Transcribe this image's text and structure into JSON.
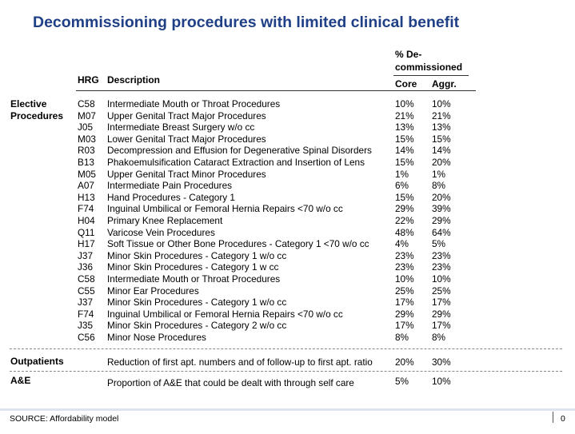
{
  "title": "Decommissioning procedures with limited clinical benefit",
  "headers": {
    "hrg": "HRG",
    "description": "Description",
    "pct_line1": "% De-",
    "pct_line2": "commissioned",
    "core": "Core",
    "aggr": "Aggr."
  },
  "sections": {
    "elective_line1": "Elective",
    "elective_line2": "Procedures",
    "outpatients": "Outpatients",
    "ae": "A&E"
  },
  "elective_rows": [
    {
      "hrg": "C58",
      "description": "Intermediate Mouth or Throat Procedures",
      "core": "10%",
      "aggr": "10%"
    },
    {
      "hrg": "M07",
      "description": "Upper Genital Tract Major Procedures",
      "core": "21%",
      "aggr": "21%"
    },
    {
      "hrg": "J05",
      "description": "Intermediate Breast Surgery w/o cc",
      "core": "13%",
      "aggr": "13%"
    },
    {
      "hrg": "M03",
      "description": "Lower Genital Tract Major Procedures",
      "core": "15%",
      "aggr": "15%"
    },
    {
      "hrg": "R03",
      "description": "Decompression and Effusion for Degenerative Spinal Disorders",
      "core": "14%",
      "aggr": "14%"
    },
    {
      "hrg": "B13",
      "description": "Phakoemulsification Cataract Extraction and Insertion of Lens",
      "core": "15%",
      "aggr": "20%"
    },
    {
      "hrg": "M05",
      "description": "Upper Genital Tract Minor Procedures",
      "core": "1%",
      "aggr": "1%"
    },
    {
      "hrg": "A07",
      "description": "Intermediate Pain Procedures",
      "core": "6%",
      "aggr": "8%"
    },
    {
      "hrg": "H13",
      "description": "Hand Procedures - Category 1",
      "core": "15%",
      "aggr": "20%"
    },
    {
      "hrg": "F74",
      "description": "Inguinal Umbilical or Femoral Hernia Repairs <70 w/o cc",
      "core": "29%",
      "aggr": "39%"
    },
    {
      "hrg": "H04",
      "description": "Primary Knee Replacement",
      "core": "22%",
      "aggr": "29%"
    },
    {
      "hrg": "Q11",
      "description": "Varicose Vein Procedures",
      "core": "48%",
      "aggr": "64%"
    },
    {
      "hrg": "H17",
      "description": "Soft Tissue or Other Bone Procedures - Category 1 <70 w/o cc",
      "core": "4%",
      "aggr": "5%"
    },
    {
      "hrg": "J37",
      "description": "Minor Skin Procedures - Category 1 w/o cc",
      "core": "23%",
      "aggr": "23%"
    },
    {
      "hrg": "J36",
      "description": "Minor Skin Procedures - Category 1 w cc",
      "core": "23%",
      "aggr": "23%"
    },
    {
      "hrg": "C58",
      "description": "Intermediate Mouth or Throat Procedures",
      "core": "10%",
      "aggr": "10%"
    },
    {
      "hrg": "C55",
      "description": "Minor Ear Procedures",
      "core": "25%",
      "aggr": "25%"
    },
    {
      "hrg": "J37",
      "description": "Minor Skin Procedures - Category 1 w/o cc",
      "core": "17%",
      "aggr": "17%"
    },
    {
      "hrg": "F74",
      "description": "Inguinal Umbilical or Femoral Hernia Repairs <70 w/o cc",
      "core": "29%",
      "aggr": "29%"
    },
    {
      "hrg": "J35",
      "description": "Minor Skin Procedures - Category 2 w/o cc",
      "core": "17%",
      "aggr": "17%"
    },
    {
      "hrg": "C56",
      "description": "Minor Nose Procedures",
      "core": "8%",
      "aggr": "8%"
    }
  ],
  "outpatients_row": {
    "description": "Reduction of first apt. numbers and of follow-up to first apt. ratio",
    "core": "20%",
    "aggr": "30%"
  },
  "ae_row": {
    "description": "Proportion of A&E that could be dealt with through self care",
    "core": "5%",
    "aggr": "10%"
  },
  "footer": {
    "source": "SOURCE: Affordability model",
    "page_number": "0"
  }
}
